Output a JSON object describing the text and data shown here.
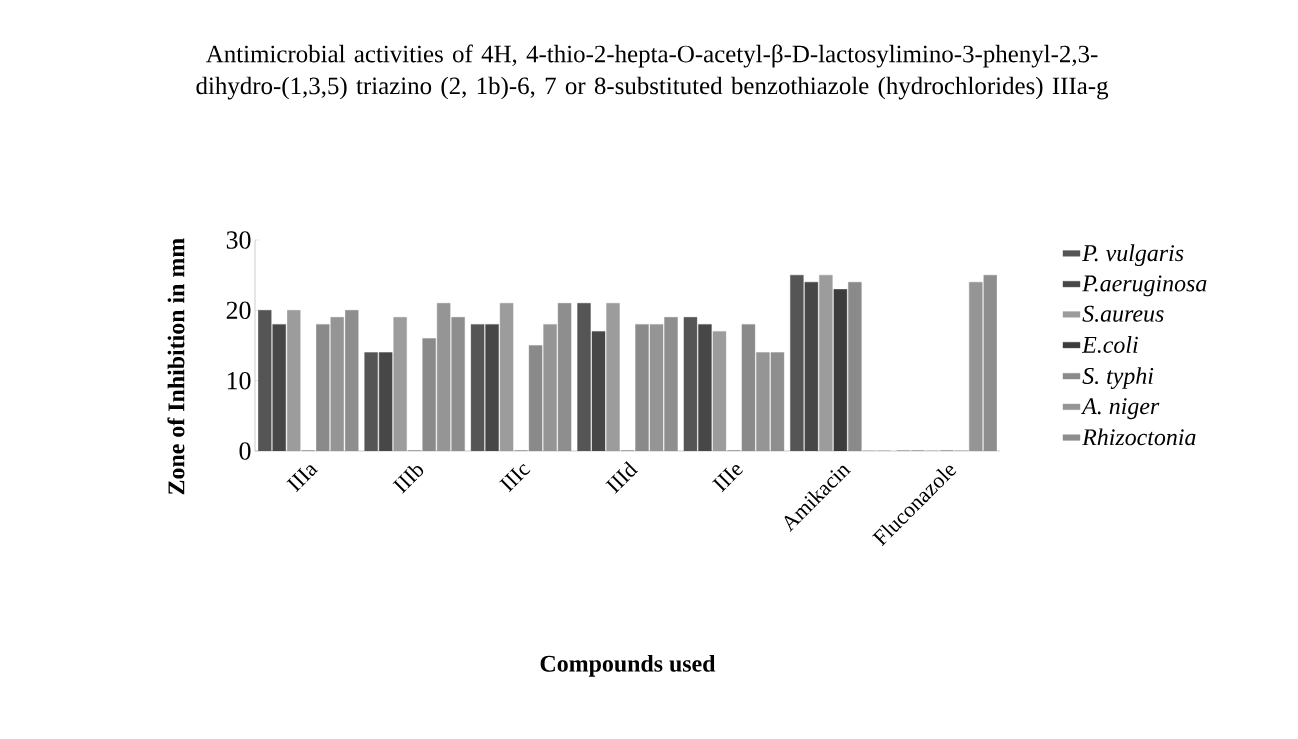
{
  "chart_data": {
    "type": "bar",
    "title": "Antimicrobial activities of 4H, 4-thio-2-hepta-O-acetyl-β-D-lactosylimino-3-phenyl-2,3-dihydro-(1,3,5) triazino (2, 1b)-6, 7 or 8-substituted benzothiazole (hydrochlorides) IIIa-g",
    "xlabel": "Compounds used",
    "ylabel": "Zone of Inhibition in mm",
    "categories": [
      "IIIa",
      "IIIb",
      "IIIc",
      "IIId",
      "IIIe",
      "Amikacin",
      "Fluconazole"
    ],
    "series": [
      {
        "name": "P. vulgaris",
        "color": "#555555",
        "values": [
          20,
          14,
          18,
          21,
          19,
          25,
          0
        ]
      },
      {
        "name": "P.aeruginosa",
        "color": "#474747",
        "values": [
          18,
          14,
          18,
          17,
          18,
          24,
          0
        ]
      },
      {
        "name": "S.aureus",
        "color": "#9c9c9c",
        "values": [
          20,
          19,
          21,
          21,
          17,
          25,
          0
        ]
      },
      {
        "name": "E.coli",
        "color": "#3c3c3c",
        "values": [
          0,
          0,
          0,
          0,
          0,
          23,
          0
        ]
      },
      {
        "name": "S. typhi",
        "color": "#8a8a8a",
        "values": [
          18,
          16,
          15,
          18,
          18,
          24,
          0
        ]
      },
      {
        "name": "A. niger",
        "color": "#959595",
        "values": [
          19,
          21,
          18,
          18,
          14,
          0,
          24
        ]
      },
      {
        "name": "Rhizoctonia",
        "color": "#8e8e8e",
        "values": [
          20,
          19,
          21,
          19,
          14,
          0,
          25
        ]
      }
    ],
    "ylim": [
      0,
      30
    ],
    "yticks": [
      0,
      10,
      20,
      30
    ],
    "grid": false,
    "legend": "right"
  }
}
